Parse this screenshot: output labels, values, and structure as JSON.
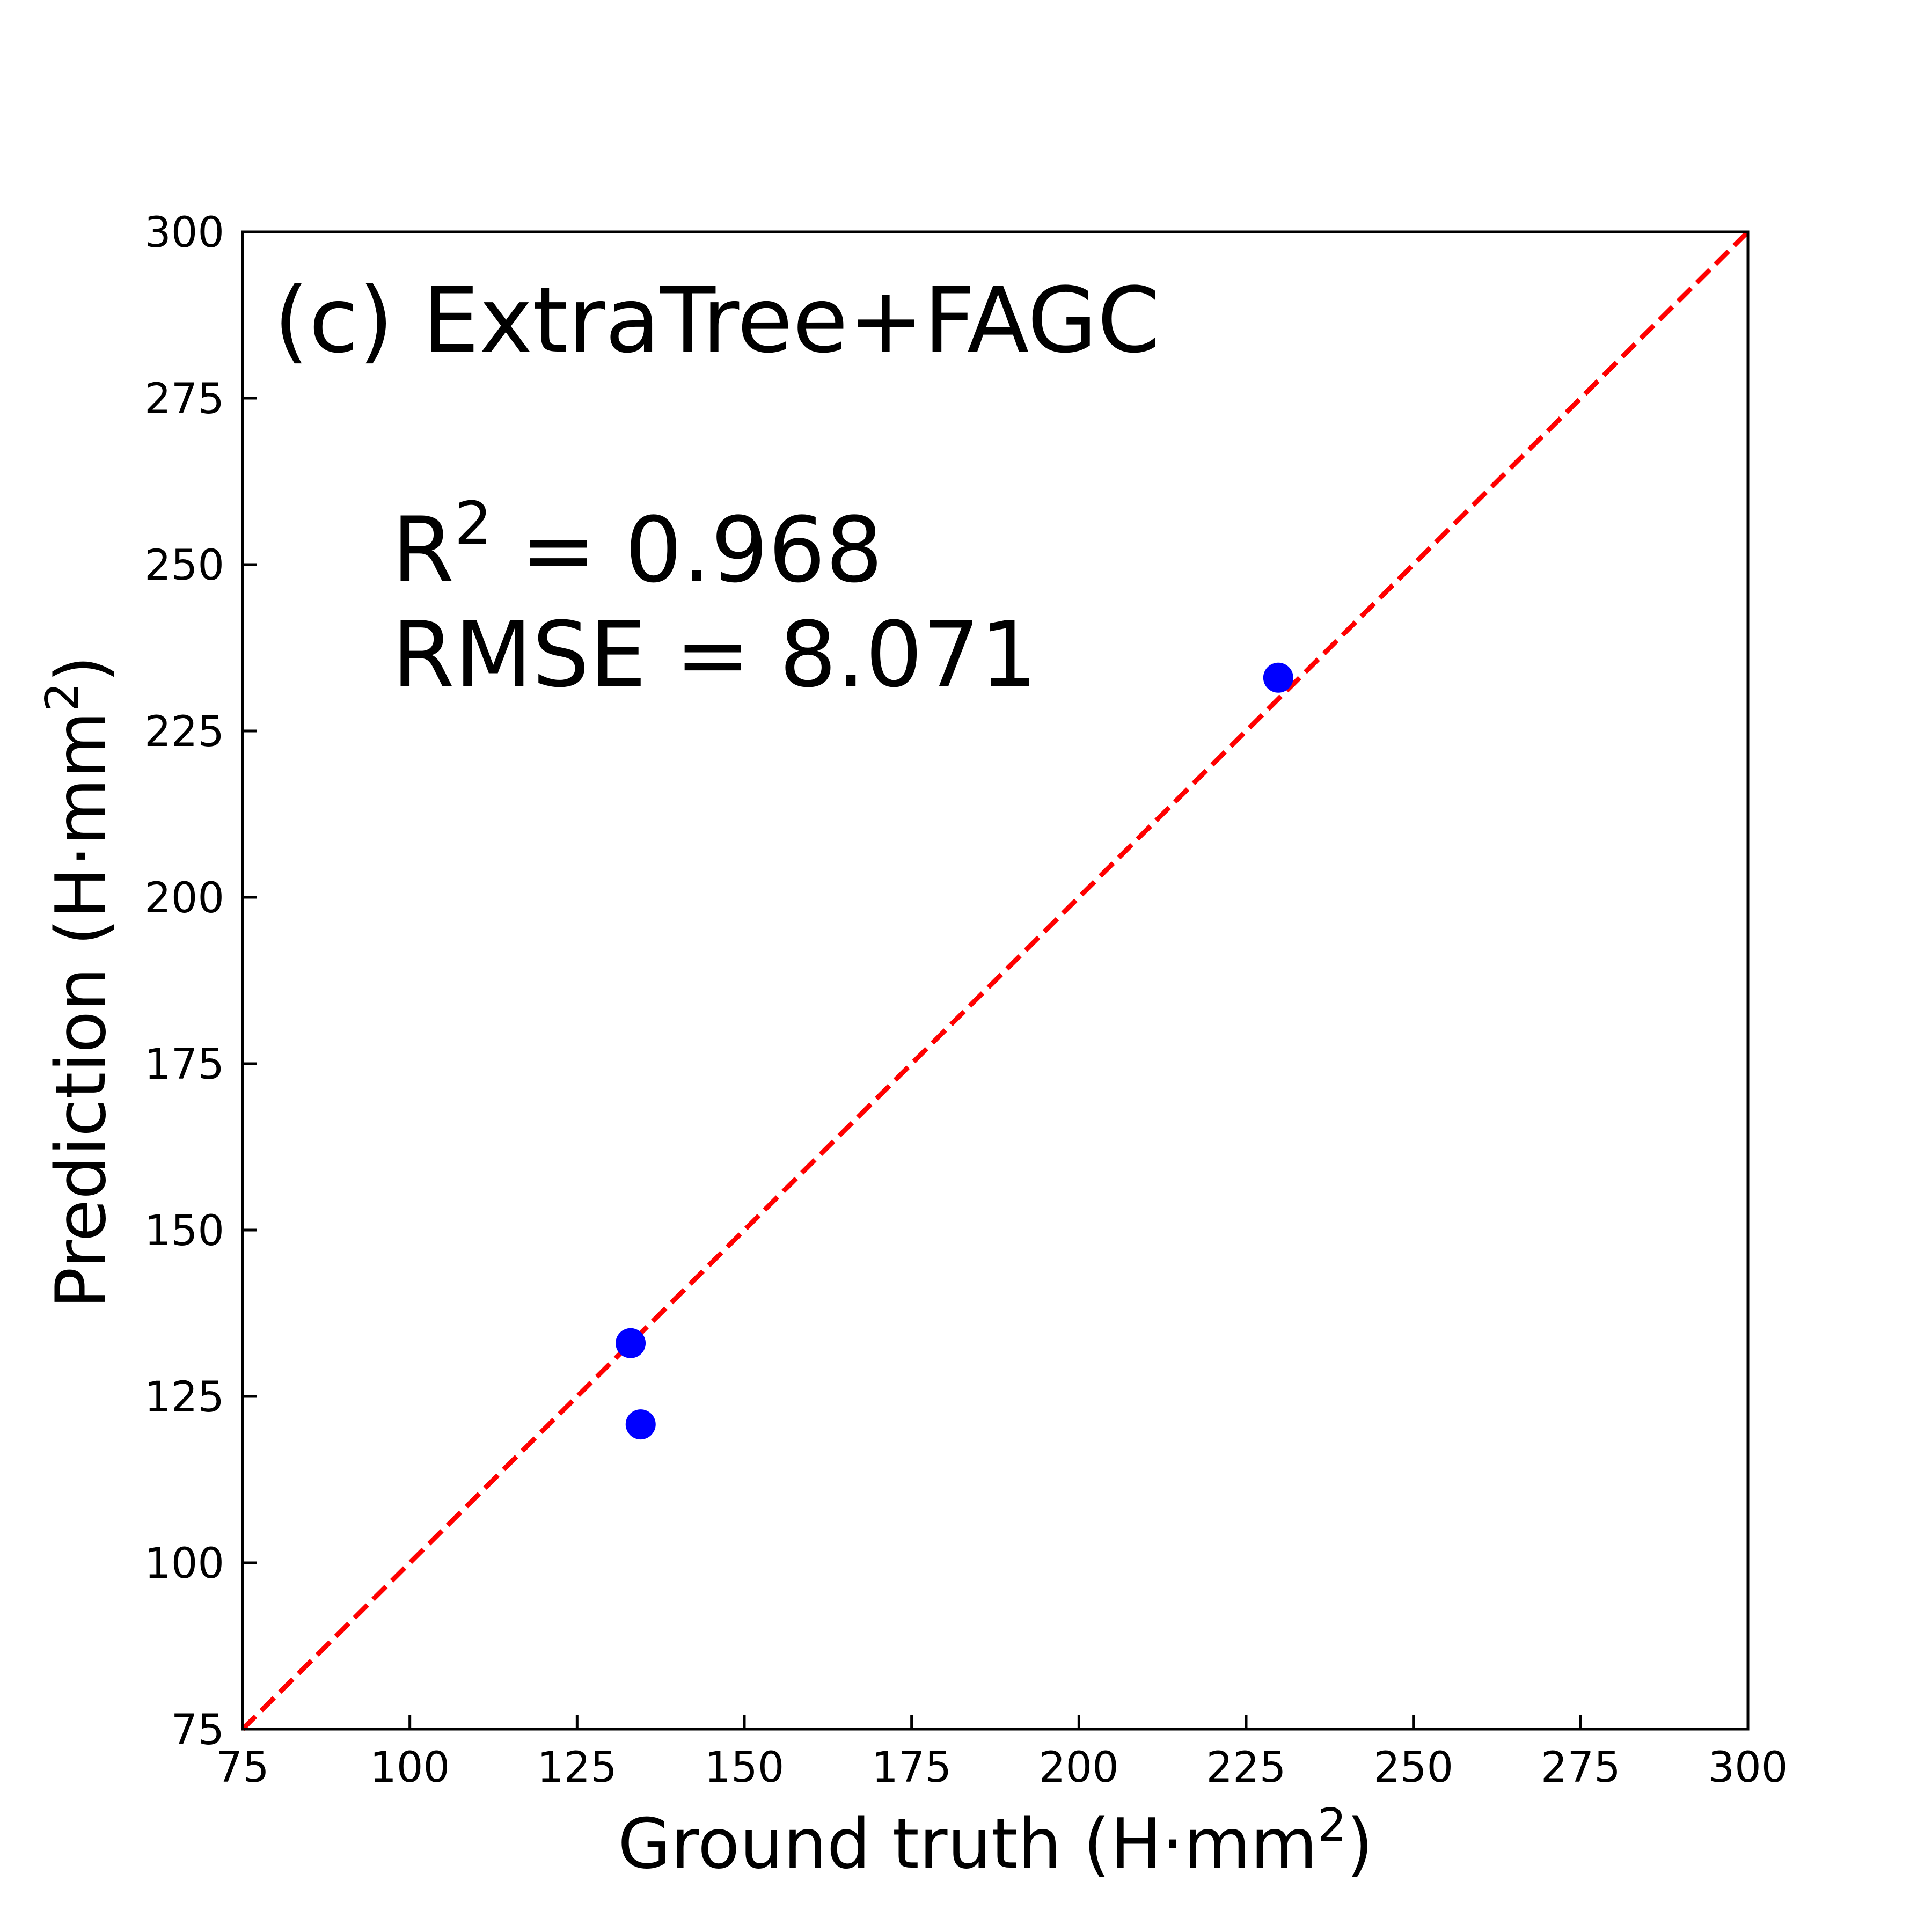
{
  "chart_data": {
    "type": "scatter",
    "panel_title": "(c) ExtraTree+FAGC",
    "xlabel": "Ground truth (H·mm",
    "xlabel_sup": "2",
    "xlabel_close": ")",
    "ylabel": "Prediction (H·mm",
    "ylabel_sup": "2",
    "ylabel_close": ")",
    "xlim": [
      75,
      300
    ],
    "ylim": [
      75,
      300
    ],
    "xticks": [
      75,
      100,
      125,
      150,
      175,
      200,
      225,
      250,
      275,
      300
    ],
    "yticks": [
      75,
      100,
      125,
      150,
      175,
      200,
      225,
      250,
      275,
      300
    ],
    "points": [
      {
        "x": 133,
        "y": 133
      },
      {
        "x": 134.5,
        "y": 120.8
      },
      {
        "x": 229.8,
        "y": 233
      }
    ],
    "reference_line": {
      "from": [
        75,
        75
      ],
      "to": [
        300,
        300
      ],
      "style": "dashed",
      "color": "#ff0000"
    },
    "point_color": "#0000ff",
    "annotations": {
      "r2_label": "R",
      "r2_sup": "2",
      "r2_value": " =  0.968",
      "rmse": "RMSE = 8.071"
    },
    "grid": false
  }
}
